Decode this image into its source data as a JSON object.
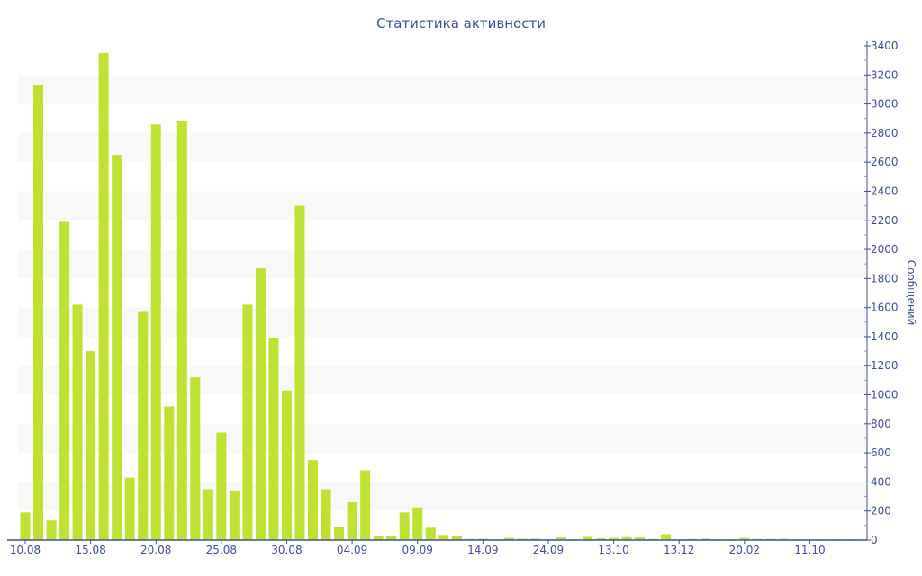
{
  "chart_data": {
    "type": "bar",
    "title": "Статистика активности",
    "xlabel": "",
    "ylabel": "Сообщений",
    "ylim": [
      0,
      3400
    ],
    "y_ticks": [
      0,
      200,
      400,
      600,
      800,
      1000,
      1200,
      1400,
      1600,
      1800,
      2000,
      2200,
      2400,
      2600,
      2800,
      3000,
      3200,
      3400
    ],
    "y_axis_position": "right",
    "grid": "alternating horizontal bands",
    "bar_color": "#bde232",
    "axis_color": "#3d4f9f",
    "band_color": "#f8f8f8",
    "x_tick_labels": [
      {
        "index": 0,
        "label": "10.08"
      },
      {
        "index": 5,
        "label": "15.08"
      },
      {
        "index": 10,
        "label": "20.08"
      },
      {
        "index": 15,
        "label": "25.08"
      },
      {
        "index": 20,
        "label": "30.08"
      },
      {
        "index": 25,
        "label": "04.09"
      },
      {
        "index": 30,
        "label": "09.09"
      },
      {
        "index": 35,
        "label": "14.09"
      },
      {
        "index": 40,
        "label": "24.09"
      },
      {
        "index": 45,
        "label": "13.10"
      },
      {
        "index": 50,
        "label": "13.12"
      },
      {
        "index": 55,
        "label": "20.02"
      },
      {
        "index": 60,
        "label": "11.10"
      }
    ],
    "values": [
      190,
      3130,
      135,
      2190,
      1620,
      1300,
      3350,
      2650,
      430,
      1570,
      2860,
      920,
      2880,
      1120,
      350,
      740,
      335,
      1620,
      1870,
      1390,
      1030,
      2300,
      550,
      350,
      90,
      260,
      480,
      25,
      25,
      190,
      225,
      85,
      35,
      25,
      8,
      10,
      5,
      15,
      10,
      10,
      5,
      18,
      5,
      22,
      12,
      15,
      20,
      18,
      8,
      40,
      5,
      8,
      10,
      5,
      5,
      15,
      8,
      8,
      8,
      5,
      5,
      5,
      5,
      5
    ]
  }
}
